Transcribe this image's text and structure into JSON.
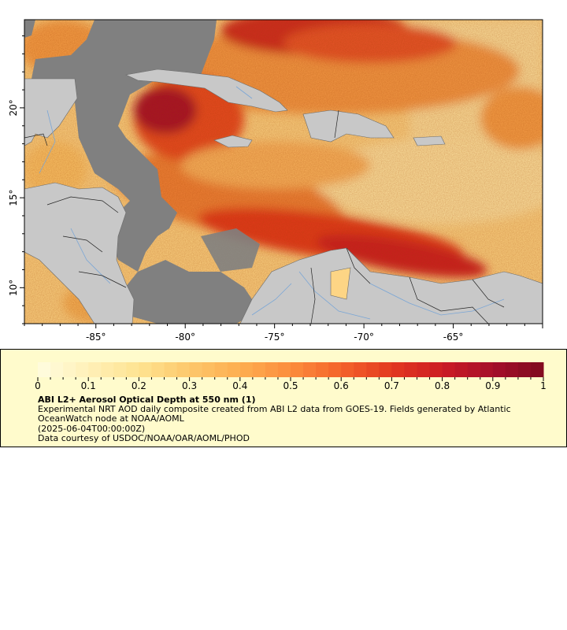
{
  "map": {
    "lon_ticks": [
      -85,
      -80,
      -75,
      -70,
      -65
    ],
    "lat_ticks": [
      10,
      15,
      20
    ],
    "lon_labels": [
      "-85°",
      "-80°",
      "-75°",
      "-70°",
      "-65°"
    ],
    "lat_labels": [
      "10°",
      "15°",
      "20°"
    ],
    "extent": {
      "lon_min": -89,
      "lon_max": -60,
      "lat_min": 8.0,
      "lat_max": 24.9
    },
    "colors": {
      "land": "#c8c8c8",
      "no_data": "#808080",
      "border": "#000000",
      "rivers": "#7aa6d6"
    }
  },
  "legend": {
    "ticks": [
      "0",
      "0.1",
      "0.2",
      "0.3",
      "0.4",
      "0.5",
      "0.6",
      "0.7",
      "0.8",
      "0.9",
      "1"
    ],
    "tick_values": [
      0,
      0.1,
      0.2,
      0.3,
      0.4,
      0.5,
      0.6,
      0.7,
      0.8,
      0.9,
      1
    ],
    "colormap": [
      "#fffce0",
      "#fff0b8",
      "#fee391",
      "#fdc76b",
      "#fdae50",
      "#fc8d3c",
      "#f4632b",
      "#e3391f",
      "#cc1c24",
      "#a50f2a",
      "#7f0a1f"
    ],
    "title": "ABI L2+ Aerosol Optical Depth at 550 nm (1)",
    "description": "Experimental NRT AOD daily composite created from ABI L2 data from GOES-19. Fields generated by Atlantic OceanWatch node at NOAA/AOML",
    "timestamp": "(2025-06-04T00:00:00Z)",
    "credit": "Data courtesy of USDOC/NOAA/OAR/AOML/PHOD"
  }
}
